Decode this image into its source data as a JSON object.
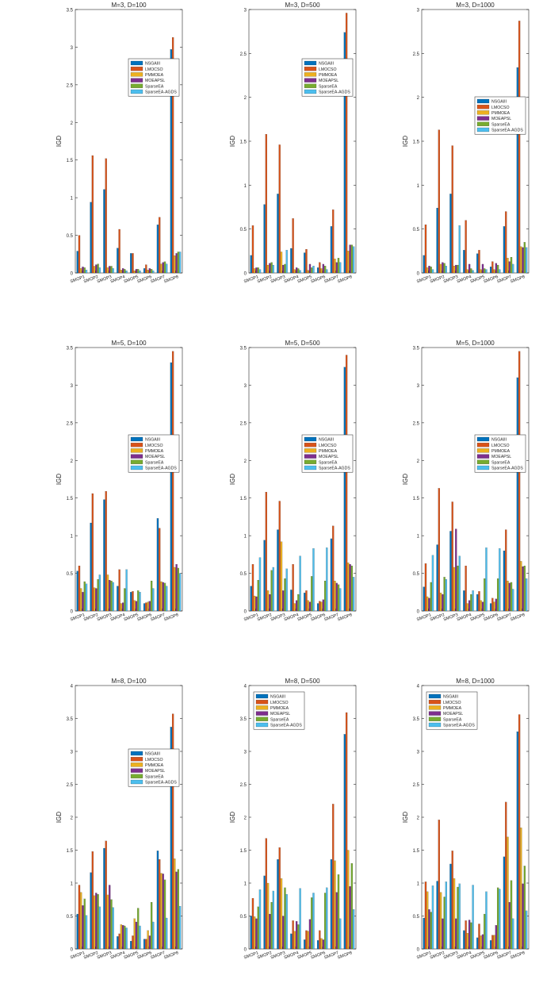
{
  "figure": {
    "colors": [
      "#0072BD",
      "#D95319",
      "#EDB120",
      "#7E2F8E",
      "#77AC30",
      "#4DBEEE"
    ]
  },
  "chart_data": [
    {
      "type": "bar",
      "title": "M=3, D=100",
      "xlabel": "",
      "ylabel": "IGD",
      "ylim": [
        0,
        3.5
      ],
      "yticks": [
        0,
        0.5,
        1,
        1.5,
        2,
        2.5,
        3,
        3.5
      ],
      "legend_position": "top-right",
      "categories": [
        "SMOP1",
        "SMOP2",
        "SMOP3",
        "SMOP4",
        "SMOP5",
        "SMOP6",
        "SMOP7",
        "SMOP8"
      ],
      "series": [
        {
          "name": "NSGAIII",
          "values": [
            0.29,
            0.94,
            1.11,
            0.33,
            0.26,
            0.06,
            0.64,
            2.97
          ]
        },
        {
          "name": "LMOCSO",
          "values": [
            0.5,
            1.56,
            1.52,
            0.58,
            0.26,
            0.11,
            0.74,
            3.13
          ]
        },
        {
          "name": "PMMOEA",
          "values": [
            0.06,
            0.09,
            0.07,
            0.04,
            0.03,
            0.04,
            0.12,
            0.23
          ]
        },
        {
          "name": "MOEAPSL",
          "values": [
            0.08,
            0.11,
            0.09,
            0.06,
            0.05,
            0.06,
            0.14,
            0.26
          ]
        },
        {
          "name": "SparseEA",
          "values": [
            0.07,
            0.12,
            0.09,
            0.05,
            0.05,
            0.05,
            0.15,
            0.28
          ]
        },
        {
          "name": "SparseEA-AGDS",
          "values": [
            0.04,
            0.07,
            0.06,
            0.03,
            0.03,
            0.03,
            0.12,
            0.28
          ]
        }
      ]
    },
    {
      "type": "bar",
      "title": "M=3, D=500",
      "xlabel": "",
      "ylabel": "IGD",
      "ylim": [
        0,
        3
      ],
      "yticks": [
        0,
        0.5,
        1,
        1.5,
        2,
        2.5,
        3
      ],
      "legend_position": "top-right",
      "categories": [
        "SMOP1",
        "SMOP2",
        "SMOP3",
        "SMOP4",
        "SMOP5",
        "SMOP6",
        "SMOP7",
        "SMOP8"
      ],
      "series": [
        {
          "name": "NSGAIII",
          "values": [
            0.2,
            0.78,
            0.9,
            0.28,
            0.23,
            0.06,
            0.53,
            2.74
          ]
        },
        {
          "name": "LMOCSO",
          "values": [
            0.54,
            1.58,
            1.46,
            0.62,
            0.27,
            0.12,
            0.72,
            2.96
          ]
        },
        {
          "name": "PMMOEA",
          "values": [
            0.05,
            0.09,
            0.24,
            0.04,
            0.03,
            0.05,
            0.16,
            0.25
          ]
        },
        {
          "name": "MOEAPSL",
          "values": [
            0.06,
            0.11,
            0.09,
            0.06,
            0.1,
            0.1,
            0.12,
            0.32
          ]
        },
        {
          "name": "SparseEA",
          "values": [
            0.06,
            0.12,
            0.1,
            0.05,
            0.06,
            0.08,
            0.17,
            0.32
          ]
        },
        {
          "name": "SparseEA-AGDS",
          "values": [
            0.04,
            0.09,
            0.26,
            0.03,
            0.08,
            0.04,
            0.12,
            0.3
          ]
        }
      ]
    },
    {
      "type": "bar",
      "title": "M=3, D=1000",
      "xlabel": "",
      "ylabel": "IGD",
      "ylim": [
        0,
        3
      ],
      "yticks": [
        0,
        0.5,
        1,
        1.5,
        2,
        2.5,
        3
      ],
      "legend_position": "right",
      "categories": [
        "SMOP1",
        "SMOP2",
        "SMOP3",
        "SMOP4",
        "SMOP5",
        "SMOP6",
        "SMOP7",
        "SMOP8"
      ],
      "series": [
        {
          "name": "NSGAIII",
          "values": [
            0.2,
            0.74,
            0.9,
            0.26,
            0.22,
            0.07,
            0.53,
            2.34
          ]
        },
        {
          "name": "LMOCSO",
          "values": [
            0.55,
            1.63,
            1.45,
            0.6,
            0.26,
            0.13,
            0.7,
            2.87
          ]
        },
        {
          "name": "PMMOEA",
          "values": [
            0.06,
            0.1,
            0.08,
            0.04,
            0.04,
            0.04,
            0.17,
            0.3
          ]
        },
        {
          "name": "MOEAPSL",
          "values": [
            0.08,
            0.12,
            0.09,
            0.1,
            0.1,
            0.11,
            0.13,
            0.29
          ]
        },
        {
          "name": "SparseEA",
          "values": [
            0.07,
            0.11,
            0.09,
            0.05,
            0.05,
            0.09,
            0.18,
            0.35
          ]
        },
        {
          "name": "SparseEA-AGDS",
          "values": [
            0.04,
            0.08,
            0.54,
            0.03,
            0.04,
            0.04,
            0.1,
            0.29
          ]
        }
      ]
    },
    {
      "type": "bar",
      "title": "M=5, D=100",
      "xlabel": "",
      "ylabel": "IGD",
      "ylim": [
        0,
        3.5
      ],
      "yticks": [
        0,
        0.5,
        1,
        1.5,
        2,
        2.5,
        3,
        3.5
      ],
      "legend_position": "right",
      "categories": [
        "SMOP1",
        "SMOP2",
        "SMOP3",
        "SMOP4",
        "SMOP5",
        "SMOP6",
        "SMOP7",
        "SMOP8"
      ],
      "series": [
        {
          "name": "NSGAIII",
          "values": [
            0.53,
            1.17,
            1.48,
            0.33,
            0.25,
            0.1,
            1.23,
            3.3
          ]
        },
        {
          "name": "LMOCSO",
          "values": [
            0.6,
            1.56,
            1.59,
            0.55,
            0.26,
            0.11,
            1.1,
            3.45
          ]
        },
        {
          "name": "PMMOEA",
          "values": [
            0.3,
            0.31,
            0.48,
            0.1,
            0.14,
            0.12,
            0.39,
            0.58
          ]
        },
        {
          "name": "MOEAPSL",
          "values": [
            0.25,
            0.3,
            0.41,
            0.11,
            0.13,
            0.13,
            0.38,
            0.62
          ]
        },
        {
          "name": "SparseEA",
          "values": [
            0.39,
            0.42,
            0.4,
            0.3,
            0.27,
            0.4,
            0.37,
            0.57
          ]
        },
        {
          "name": "SparseEA-AGDS",
          "values": [
            0.36,
            0.48,
            0.38,
            0.55,
            0.25,
            0.3,
            0.33,
            0.5
          ]
        }
      ]
    },
    {
      "type": "bar",
      "title": "M=5, D=500",
      "xlabel": "",
      "ylabel": "IGD",
      "ylim": [
        0,
        3.5
      ],
      "yticks": [
        0,
        0.5,
        1,
        1.5,
        2,
        2.5,
        3,
        3.5
      ],
      "legend_position": "right",
      "categories": [
        "SMOP1",
        "SMOP2",
        "SMOP3",
        "SMOP4",
        "SMOP5",
        "SMOP6",
        "SMOP7",
        "SMOP8"
      ],
      "series": [
        {
          "name": "NSGAIII",
          "values": [
            0.33,
            0.94,
            1.08,
            0.28,
            0.24,
            0.1,
            0.96,
            3.24
          ]
        },
        {
          "name": "LMOCSO",
          "values": [
            0.62,
            1.58,
            1.46,
            0.62,
            0.27,
            0.13,
            1.13,
            3.4
          ]
        },
        {
          "name": "PMMOEA",
          "values": [
            0.2,
            0.27,
            0.92,
            0.1,
            0.14,
            0.12,
            0.4,
            0.64
          ]
        },
        {
          "name": "MOEAPSL",
          "values": [
            0.19,
            0.22,
            0.27,
            0.14,
            0.12,
            0.15,
            0.37,
            0.62
          ]
        },
        {
          "name": "SparseEA",
          "values": [
            0.41,
            0.54,
            0.43,
            0.22,
            0.46,
            0.4,
            0.35,
            0.6
          ]
        },
        {
          "name": "SparseEA-AGDS",
          "values": [
            0.71,
            0.58,
            0.56,
            0.73,
            0.83,
            0.84,
            0.3,
            0.45
          ]
        }
      ]
    },
    {
      "type": "bar",
      "title": "M=5, D=1000",
      "xlabel": "",
      "ylabel": "IGD",
      "ylim": [
        0,
        3.5
      ],
      "yticks": [
        0,
        0.5,
        1,
        1.5,
        2,
        2.5,
        3,
        3.5
      ],
      "legend_position": "right",
      "categories": [
        "SMOP1",
        "SMOP2",
        "SMOP3",
        "SMOP4",
        "SMOP5",
        "SMOP6",
        "SMOP7",
        "SMOP8"
      ],
      "series": [
        {
          "name": "NSGAIII",
          "values": [
            0.32,
            0.88,
            1.06,
            0.27,
            0.22,
            0.1,
            0.8,
            3.1
          ]
        },
        {
          "name": "LMOCSO",
          "values": [
            0.63,
            1.63,
            1.45,
            0.6,
            0.26,
            0.17,
            1.08,
            3.45
          ]
        },
        {
          "name": "PMMOEA",
          "values": [
            0.19,
            0.24,
            0.58,
            0.1,
            0.14,
            0.12,
            0.4,
            0.66
          ]
        },
        {
          "name": "MOEAPSL",
          "values": [
            0.17,
            0.22,
            1.09,
            0.14,
            0.12,
            0.16,
            0.37,
            0.59
          ]
        },
        {
          "name": "SparseEA",
          "values": [
            0.38,
            0.45,
            0.6,
            0.22,
            0.43,
            0.43,
            0.38,
            0.6
          ]
        },
        {
          "name": "SparseEA-AGDS",
          "values": [
            0.74,
            0.42,
            0.73,
            0.27,
            0.84,
            0.83,
            0.29,
            0.43
          ]
        }
      ]
    },
    {
      "type": "bar",
      "title": "M=8, D=100",
      "xlabel": "",
      "ylabel": "IGD",
      "ylim": [
        0,
        4
      ],
      "yticks": [
        0,
        0.5,
        1,
        1.5,
        2,
        2.5,
        3,
        3.5,
        4
      ],
      "legend_position": "right",
      "categories": [
        "SMOP1",
        "SMOP2",
        "SMOP3",
        "SMOP4",
        "SMOP5",
        "SMOP6",
        "SMOP7",
        "SMOP8"
      ],
      "series": [
        {
          "name": "NSGAIII",
          "values": [
            0.53,
            1.16,
            1.53,
            0.19,
            0.12,
            0.15,
            1.49,
            3.37
          ]
        },
        {
          "name": "LMOCSO",
          "values": [
            0.97,
            1.48,
            1.64,
            0.23,
            0.2,
            0.15,
            1.36,
            3.57
          ]
        },
        {
          "name": "PMMOEA",
          "values": [
            0.86,
            0.81,
            0.82,
            0.37,
            0.46,
            0.28,
            1.15,
            1.37
          ]
        },
        {
          "name": "MOEAPSL",
          "values": [
            0.66,
            0.85,
            0.97,
            0.36,
            0.41,
            0.2,
            1.14,
            1.17
          ]
        },
        {
          "name": "SparseEA",
          "values": [
            0.76,
            0.83,
            0.75,
            0.35,
            0.62,
            0.71,
            1.05,
            1.21
          ]
        },
        {
          "name": "SparseEA-AGDS",
          "values": [
            0.51,
            0.64,
            0.63,
            0.32,
            0.35,
            0.41,
            0.47,
            0.65
          ]
        }
      ]
    },
    {
      "type": "bar",
      "title": "M=8, D=500",
      "xlabel": "",
      "ylabel": "IGD",
      "ylim": [
        0,
        4
      ],
      "yticks": [
        0,
        0.5,
        1,
        1.5,
        2,
        2.5,
        3,
        3.5,
        4
      ],
      "legend_position": "top-left",
      "categories": [
        "SMOP1",
        "SMOP2",
        "SMOP3",
        "SMOP4",
        "SMOP5",
        "SMOP6",
        "SMOP7",
        "SMOP8"
      ],
      "series": [
        {
          "name": "NSGAIII",
          "values": [
            0.5,
            1.11,
            1.36,
            0.23,
            0.14,
            0.13,
            1.36,
            3.26
          ]
        },
        {
          "name": "LMOCSO",
          "values": [
            0.77,
            1.68,
            1.54,
            0.43,
            0.28,
            0.28,
            2.2,
            3.59
          ]
        },
        {
          "name": "PMMOEA",
          "values": [
            0.49,
            1.0,
            1.07,
            0.27,
            0.27,
            0.16,
            1.34,
            1.5
          ]
        },
        {
          "name": "MOEAPSL",
          "values": [
            0.46,
            0.53,
            0.5,
            0.42,
            0.45,
            0.14,
            0.86,
            0.95
          ]
        },
        {
          "name": "SparseEA",
          "values": [
            0.64,
            0.71,
            0.93,
            0.37,
            0.78,
            0.85,
            1.13,
            1.3
          ]
        },
        {
          "name": "SparseEA-AGDS",
          "values": [
            0.9,
            0.88,
            0.83,
            0.92,
            0.85,
            0.93,
            0.46,
            0.6
          ]
        }
      ]
    },
    {
      "type": "bar",
      "title": "M=8, D=1000",
      "xlabel": "",
      "ylabel": "IGD",
      "ylim": [
        0,
        4
      ],
      "yticks": [
        0,
        0.5,
        1,
        1.5,
        2,
        2.5,
        3,
        3.5,
        4
      ],
      "legend_position": "top-left",
      "categories": [
        "SMOP1",
        "SMOP2",
        "SMOP3",
        "SMOP4",
        "SMOP5",
        "SMOP6",
        "SMOP7",
        "SMOP8"
      ],
      "series": [
        {
          "name": "NSGAIII",
          "values": [
            0.47,
            1.03,
            1.29,
            0.28,
            0.17,
            0.13,
            1.4,
            3.3
          ]
        },
        {
          "name": "LMOCSO",
          "values": [
            1.02,
            1.96,
            1.49,
            0.43,
            0.38,
            0.21,
            2.23,
            3.56
          ]
        },
        {
          "name": "PMMOEA",
          "values": [
            0.87,
            0.86,
            1.07,
            0.24,
            0.2,
            0.21,
            1.7,
            1.84
          ]
        },
        {
          "name": "MOEAPSL",
          "values": [
            0.6,
            0.46,
            0.46,
            0.44,
            0.22,
            0.36,
            0.71,
            0.99
          ]
        },
        {
          "name": "SparseEA",
          "values": [
            0.56,
            0.79,
            0.94,
            0.4,
            0.53,
            0.93,
            1.04,
            1.26
          ]
        },
        {
          "name": "SparseEA-AGDS",
          "values": [
            0.96,
            1.02,
            0.99,
            0.97,
            0.87,
            0.91,
            0.46,
            0.58
          ]
        }
      ]
    }
  ]
}
